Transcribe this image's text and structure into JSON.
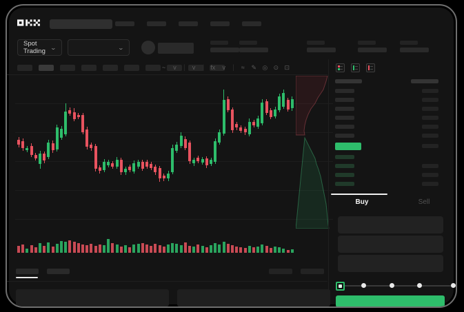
{
  "colors": {
    "up_green": "#2ebd6b",
    "down_red": "#e8535f",
    "background": "#141414",
    "placeholder": "#2a2a2a",
    "last_price_highlight": "#2ebd6b",
    "buy_button": "#2ebd6b"
  },
  "topnav": {
    "logo_text": "OKX",
    "search_placeholder_present": true,
    "nav_placeholder_count": 5
  },
  "ticker_row": {
    "market_dropdown_label": "Spot Trading",
    "dropdown_chevron": "⌄",
    "pair_dropdown_label": "",
    "stat_group_count": 5
  },
  "chart_toolbar": {
    "interval_placeholder_count": 10,
    "active_interval_index": 1,
    "icons": [
      {
        "name": "candle-style-icon",
        "glyph": "~"
      },
      {
        "name": "chevron-down-icon",
        "glyph": "v"
      },
      {
        "name": "divider",
        "glyph": "|"
      },
      {
        "name": "compare-chevron-icon",
        "glyph": "v"
      },
      {
        "name": "divider",
        "glyph": "|"
      },
      {
        "name": "indicators-icon",
        "glyph": "fx"
      },
      {
        "name": "chevron-down-icon",
        "glyph": "v"
      },
      {
        "name": "divider",
        "glyph": "|"
      },
      {
        "name": "line-tool-icon",
        "glyph": "≈"
      },
      {
        "name": "draw-tool-icon",
        "glyph": "✎"
      },
      {
        "name": "screenshot-icon",
        "glyph": "◎"
      },
      {
        "name": "settings-icon",
        "glyph": "⊙"
      },
      {
        "name": "fullscreen-icon",
        "glyph": "⊡"
      }
    ]
  },
  "orderbook": {
    "view_mode_icons": [
      {
        "name": "book-split-view-icon",
        "mode": "split"
      },
      {
        "name": "book-bids-view-icon",
        "mode": "bids"
      },
      {
        "name": "book-asks-view-icon",
        "mode": "asks"
      }
    ],
    "column_header_count": 2,
    "ask_row_count": 6,
    "bid_row_count": 4,
    "last_price_row": {
      "highlight_color": "#2ebd6b"
    }
  },
  "trade_panel": {
    "tabs": [
      {
        "label": "Buy",
        "active": true
      },
      {
        "label": "Sell",
        "active": false
      }
    ],
    "field_count": 3,
    "slider": {
      "stop_count": 5,
      "selected_stop_index": 0
    },
    "submit_button_color": "#2ebd6b"
  },
  "bottom_bar": {
    "left_tab_count": 2,
    "active_left_tab_index": 0,
    "right_tab_count": 2,
    "panel_block_count": 2
  },
  "chart_data": {
    "type": "candlestick_with_volume",
    "title": "",
    "xlabel": "",
    "ylabel": "",
    "axis_labels_visible": false,
    "units": "chart pixel units, price axis top=0 (smaller = higher price), candle=[bodyTop,bodyBottom,wickUp,wickDown,color]",
    "candles": [
      [
        91,
        98,
        4,
        4,
        "r"
      ],
      [
        93,
        103,
        4,
        4,
        "r"
      ],
      [
        103,
        106,
        3,
        3,
        "g"
      ],
      [
        100,
        113,
        4,
        3,
        "r"
      ],
      [
        113,
        118,
        3,
        3,
        "r"
      ],
      [
        111,
        126,
        4,
        7,
        "g"
      ],
      [
        111,
        121,
        3,
        4,
        "r"
      ],
      [
        95,
        116,
        4,
        3,
        "g"
      ],
      [
        96,
        106,
        4,
        4,
        "r"
      ],
      [
        73,
        105,
        4,
        3,
        "g"
      ],
      [
        75,
        88,
        4,
        3,
        "g"
      ],
      [
        50,
        83,
        12,
        3,
        "g"
      ],
      [
        48,
        53,
        4,
        3,
        "r"
      ],
      [
        51,
        61,
        6,
        3,
        "r"
      ],
      [
        55,
        58,
        3,
        3,
        "r"
      ],
      [
        55,
        80,
        3,
        3,
        "r"
      ],
      [
        76,
        101,
        4,
        4,
        "r"
      ],
      [
        98,
        103,
        3,
        4,
        "r"
      ],
      [
        100,
        133,
        3,
        4,
        "r"
      ],
      [
        131,
        136,
        3,
        4,
        "r"
      ],
      [
        123,
        135,
        4,
        3,
        "g"
      ],
      [
        123,
        128,
        3,
        3,
        "g"
      ],
      [
        125,
        130,
        3,
        3,
        "r"
      ],
      [
        120,
        130,
        4,
        3,
        "g"
      ],
      [
        120,
        138,
        3,
        4,
        "r"
      ],
      [
        133,
        138,
        3,
        4,
        "g"
      ],
      [
        130,
        135,
        3,
        3,
        "r"
      ],
      [
        125,
        137,
        4,
        3,
        "g"
      ],
      [
        123,
        130,
        3,
        3,
        "g"
      ],
      [
        123,
        133,
        3,
        3,
        "r"
      ],
      [
        123,
        130,
        3,
        3,
        "r"
      ],
      [
        126,
        132,
        3,
        3,
        "r"
      ],
      [
        130,
        138,
        3,
        4,
        "r"
      ],
      [
        132,
        147,
        3,
        5,
        "r"
      ],
      [
        143,
        147,
        3,
        4,
        "r"
      ],
      [
        140,
        147,
        4,
        4,
        "g"
      ],
      [
        103,
        138,
        5,
        3,
        "g"
      ],
      [
        98,
        107,
        4,
        3,
        "g"
      ],
      [
        85,
        100,
        5,
        3,
        "g"
      ],
      [
        90,
        103,
        4,
        3,
        "r"
      ],
      [
        95,
        122,
        3,
        4,
        "r"
      ],
      [
        120,
        125,
        3,
        4,
        "g"
      ],
      [
        117,
        122,
        3,
        3,
        "r"
      ],
      [
        119,
        124,
        3,
        3,
        "g"
      ],
      [
        118,
        128,
        3,
        4,
        "r"
      ],
      [
        120,
        126,
        3,
        3,
        "g"
      ],
      [
        93,
        123,
        4,
        3,
        "g"
      ],
      [
        80,
        95,
        4,
        3,
        "g"
      ],
      [
        33,
        82,
        15,
        3,
        "g"
      ],
      [
        32,
        48,
        4,
        3,
        "r"
      ],
      [
        47,
        77,
        3,
        4,
        "r"
      ],
      [
        68,
        73,
        3,
        4,
        "r"
      ],
      [
        73,
        78,
        3,
        3,
        "r"
      ],
      [
        75,
        80,
        3,
        4,
        "r"
      ],
      [
        65,
        83,
        5,
        3,
        "g"
      ],
      [
        65,
        70,
        3,
        3,
        "r"
      ],
      [
        60,
        72,
        4,
        3,
        "g"
      ],
      [
        37,
        67,
        5,
        3,
        "g"
      ],
      [
        35,
        52,
        3,
        3,
        "r"
      ],
      [
        48,
        58,
        3,
        3,
        "r"
      ],
      [
        47,
        57,
        4,
        3,
        "g"
      ],
      [
        28,
        48,
        4,
        3,
        "g"
      ],
      [
        23,
        43,
        5,
        3,
        "g"
      ],
      [
        33,
        47,
        3,
        3,
        "r"
      ],
      [
        32,
        45,
        4,
        4,
        "g"
      ]
    ],
    "volumes": [
      10,
      12,
      6,
      11,
      8,
      14,
      10,
      15,
      9,
      13,
      17,
      16,
      18,
      16,
      14,
      12,
      11,
      13,
      10,
      12,
      11,
      20,
      14,
      12,
      9,
      11,
      8,
      12,
      13,
      14,
      12,
      10,
      13,
      11,
      9,
      12,
      14,
      13,
      11,
      15,
      10,
      9,
      12,
      10,
      8,
      11,
      14,
      12,
      16,
      13,
      11,
      9,
      8,
      7,
      10,
      8,
      9,
      12,
      10,
      7,
      9,
      8,
      6,
      4,
      5
    ],
    "depth": {
      "orientation": "vertical",
      "red_boundary": [
        [
          46,
          0
        ],
        [
          44,
          8
        ],
        [
          42,
          14
        ],
        [
          40,
          20
        ],
        [
          36,
          26
        ],
        [
          32,
          32
        ],
        [
          28,
          40
        ],
        [
          22,
          48
        ],
        [
          18,
          56
        ],
        [
          15,
          64
        ],
        [
          13,
          72
        ],
        [
          12,
          80
        ],
        [
          13,
          86
        ]
      ],
      "green_boundary": [
        [
          13,
          90
        ],
        [
          16,
          96
        ],
        [
          20,
          104
        ],
        [
          24,
          112
        ],
        [
          28,
          120
        ],
        [
          30,
          128
        ],
        [
          33,
          136
        ],
        [
          36,
          146
        ],
        [
          38,
          156
        ],
        [
          40,
          166
        ],
        [
          42,
          176
        ],
        [
          44,
          186
        ],
        [
          45,
          196
        ],
        [
          46,
          206
        ],
        [
          47,
          216
        ],
        [
          48,
          222
        ]
      ]
    }
  }
}
